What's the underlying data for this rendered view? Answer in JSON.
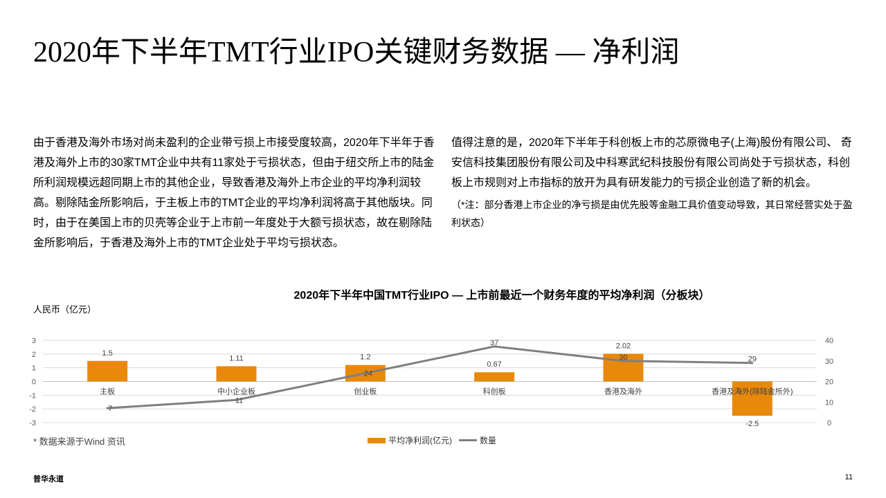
{
  "slide": {
    "title": "2020年下半年TMT行业IPO关键财务数据 — 净利润",
    "paragraph_left": "由于香港及海外市场对尚未盈利的企业带亏损上市接受度较高，2020年下半年于香港及海外上市的30家TMT企业中共有11家处于亏损状态，但由于纽交所上市的陆金所利润规模远超同期上市的其他企业，导致香港及海外上市企业的平均净利润较高。剔除陆金所影响后，于主板上市的TMT企业的平均净利润将高于其他版块。同时，由于在美国上市的贝壳等企业于上市前一年度处于大额亏损状态，故在剔除陆金所影响后，于香港及海外上市的TMT企业处于平均亏损状态。",
    "paragraph_right": "值得注意的是，2020年下半年于科创板上市的芯原微电子(上海)股份有限公司、 奇安信科技集团股份有限公司及中科寒武纪科技股份有限公司尚处于亏损状态，科创板上市规则对上市指标的放开为具有研发能力的亏损企业创造了新的机会。",
    "note": "（*注：部分香港上市企业的净亏损是由优先股等金融工具价值变动导致，其日常经营实处于盈利状态）",
    "source": "* 数据来源于Wind 资讯",
    "footer_brand": "普华永道",
    "page_number": "11"
  },
  "chart_data": {
    "type": "bar",
    "title": "2020年下半年中国TMT行业IPO — 上市前最近一个财务年度的平均净利润（分板块）",
    "ylabel": "人民币（亿元）",
    "categories": [
      "主板",
      "中小企业板",
      "创业板",
      "科创板",
      "香港及海外",
      "香港及海外(除陆金所外)"
    ],
    "series": [
      {
        "name": "平均净利润(亿元)",
        "type": "bar",
        "axis": "left",
        "color": "#e8890c",
        "values": [
          1.5,
          1.11,
          1.2,
          0.67,
          2.02,
          -2.5
        ]
      },
      {
        "name": "数量",
        "type": "line",
        "axis": "right",
        "color": "#7f7f7f",
        "values": [
          7,
          11,
          24,
          37,
          30,
          29
        ]
      }
    ],
    "ylim_left": [
      -3,
      3
    ],
    "yticks_left": [
      3,
      2,
      1,
      0,
      -1,
      -2,
      -3
    ],
    "ylim_right": [
      0,
      40
    ],
    "yticks_right": [
      40,
      30,
      20,
      10,
      0
    ],
    "grid": true,
    "legend": "bottom"
  }
}
